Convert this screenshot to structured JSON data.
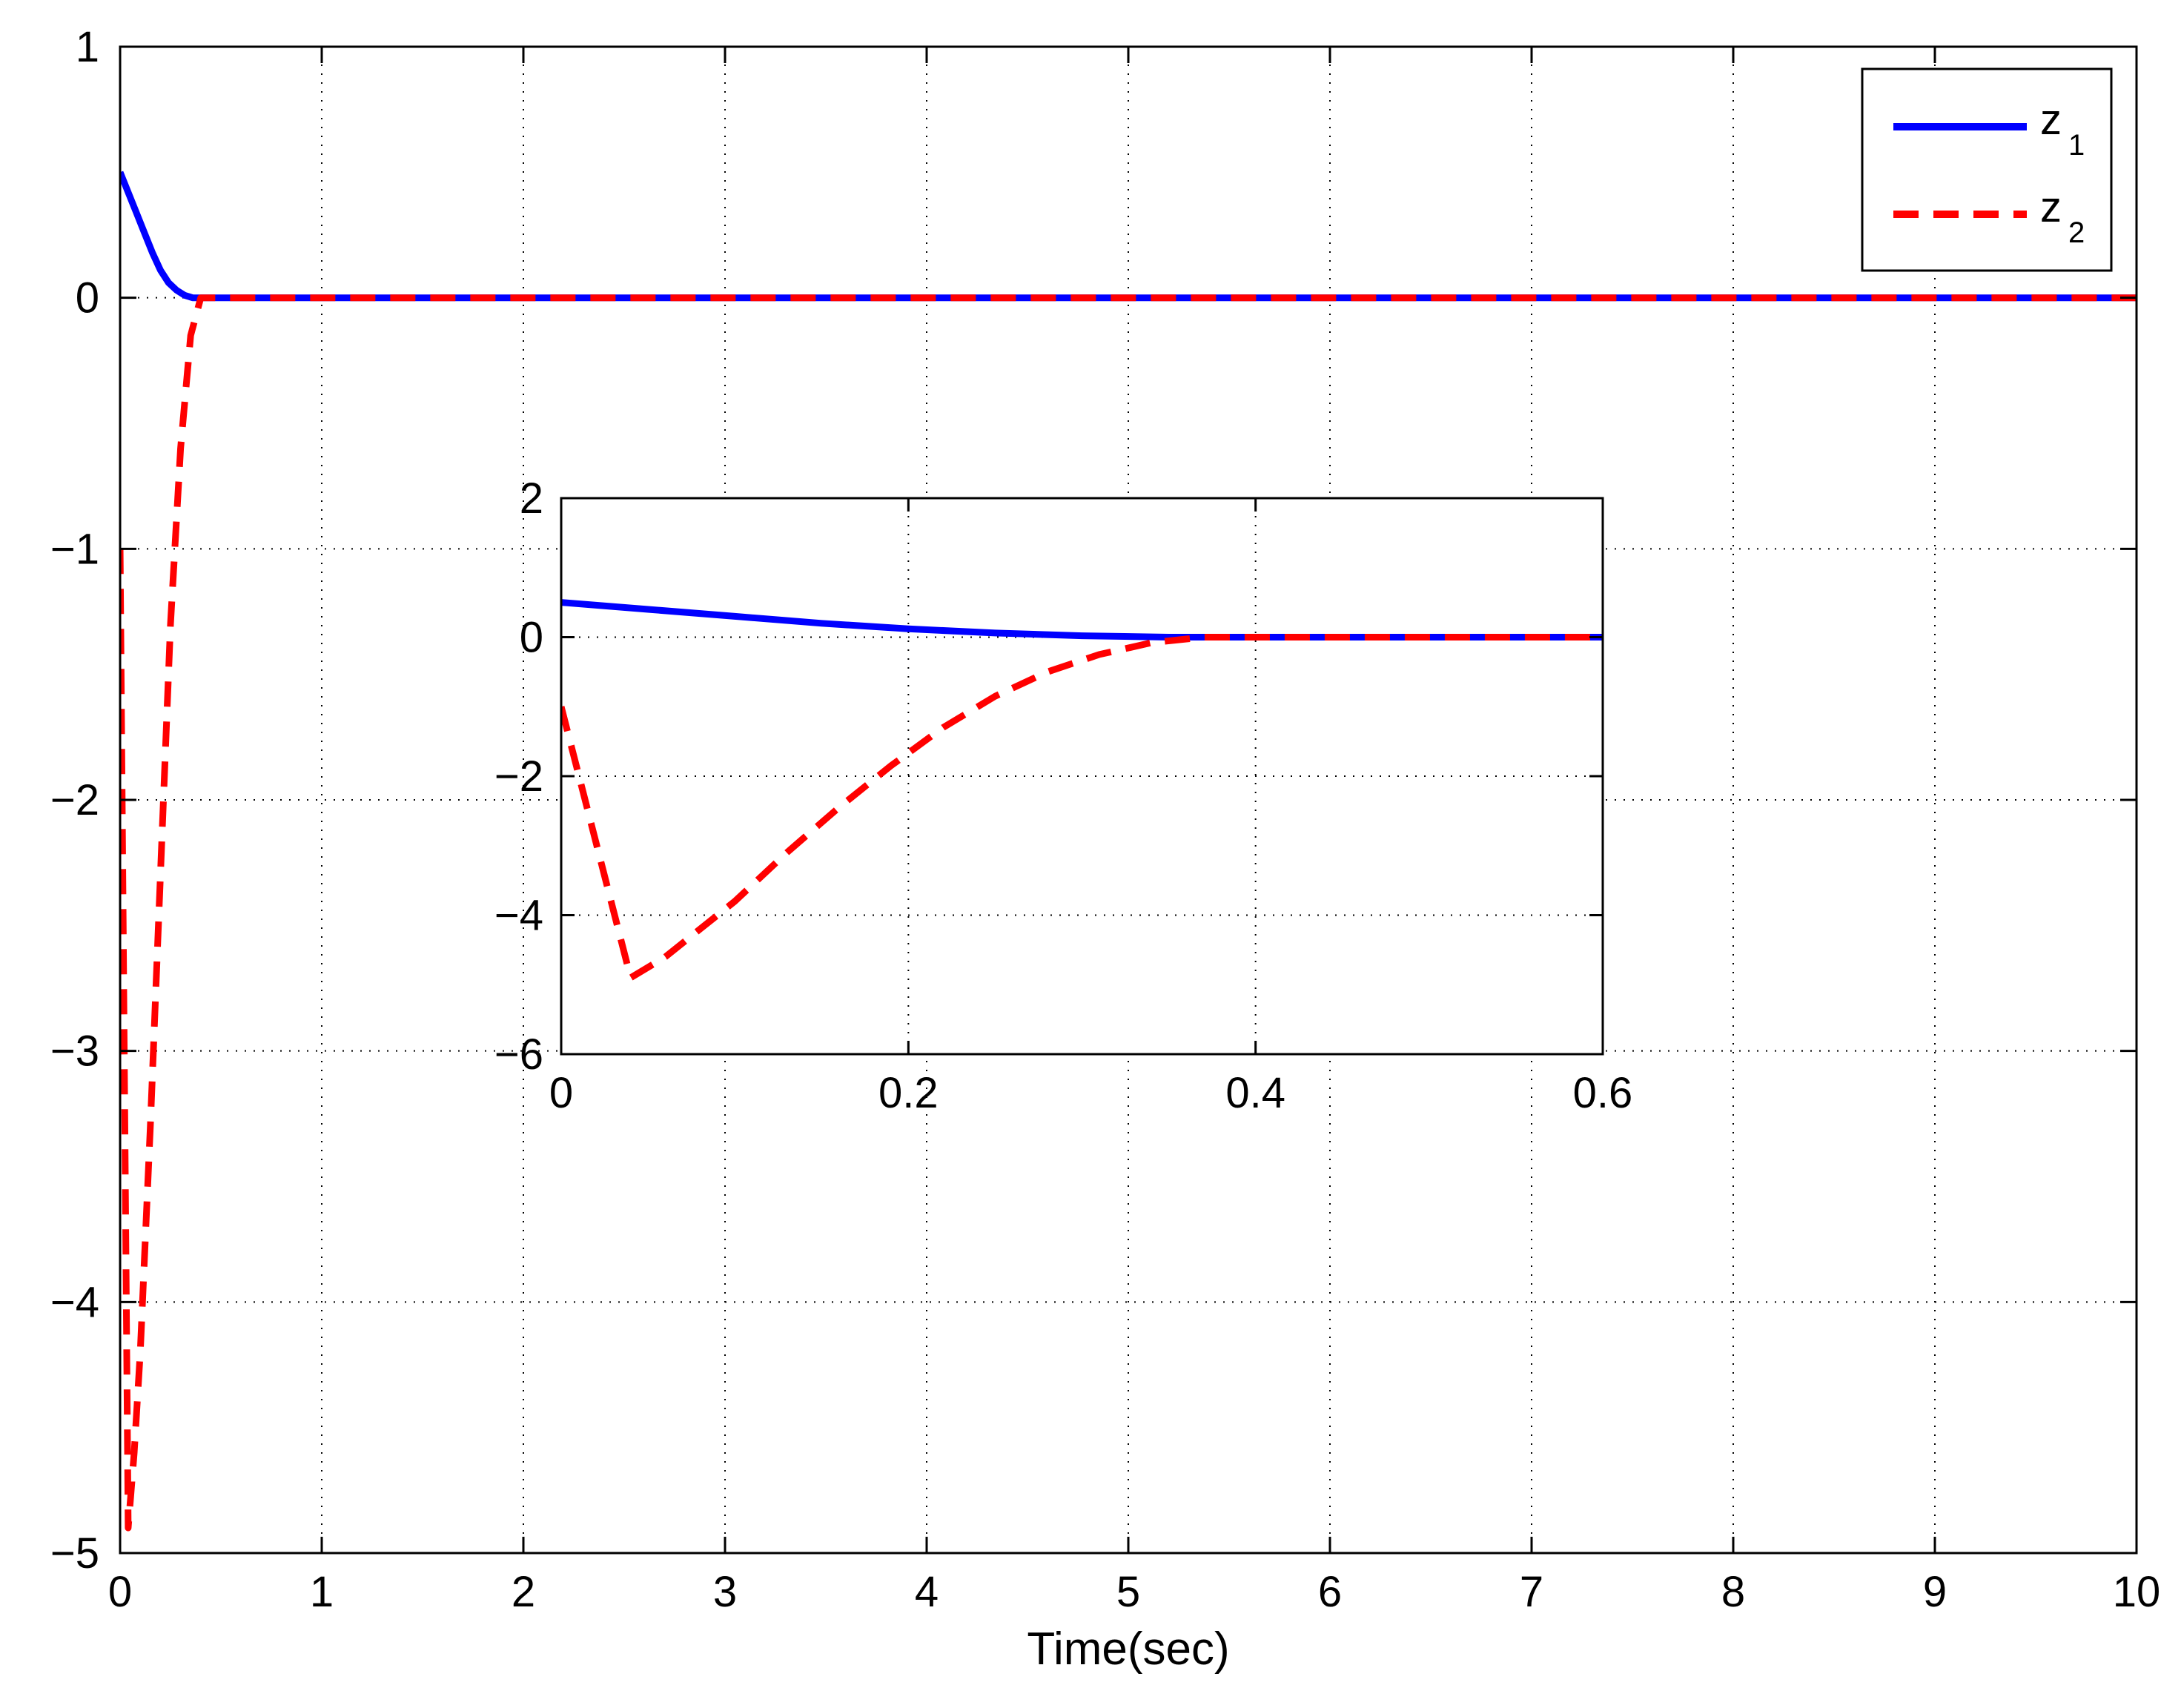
{
  "chart_data": [
    {
      "id": "main",
      "type": "line",
      "xlabel": "Time(sec)",
      "ylabel": "",
      "xlim": [
        0,
        10
      ],
      "ylim": [
        -5,
        1
      ],
      "xticks": [
        0,
        1,
        2,
        3,
        4,
        5,
        6,
        7,
        8,
        9,
        10
      ],
      "yticks": [
        -5,
        -4,
        -3,
        -2,
        -1,
        0,
        1
      ],
      "xtick_labels": [
        "0",
        "1",
        "2",
        "3",
        "4",
        "5",
        "6",
        "7",
        "8",
        "9",
        "10"
      ],
      "ytick_labels": [
        "−5",
        "−4",
        "−3",
        "−2",
        "−1",
        "0",
        "1"
      ],
      "grid": true,
      "legend_position": "top-right",
      "series": [
        {
          "name": "z",
          "subscript": "1",
          "color": "#0000ff",
          "style": "solid",
          "x": [
            0,
            0.04,
            0.08,
            0.12,
            0.16,
            0.2,
            0.24,
            0.28,
            0.32,
            0.36,
            0.4,
            1,
            2,
            3,
            4,
            5,
            6,
            7,
            8,
            9,
            10
          ],
          "y": [
            0.5,
            0.42,
            0.34,
            0.26,
            0.18,
            0.11,
            0.06,
            0.03,
            0.01,
            0.0,
            0,
            0,
            0,
            0,
            0,
            0,
            0,
            0,
            0,
            0,
            0
          ]
        },
        {
          "name": "z",
          "subscript": "2",
          "color": "#ff0000",
          "style": "dashed",
          "x": [
            0,
            0.04,
            0.07,
            0.1,
            0.15,
            0.2,
            0.25,
            0.3,
            0.35,
            0.4,
            1,
            2,
            3,
            4,
            5,
            6,
            7,
            8,
            9,
            10
          ],
          "y": [
            -1,
            -4.9,
            -4.6,
            -4.2,
            -3.3,
            -2.3,
            -1.3,
            -0.6,
            -0.15,
            0,
            0,
            0,
            0,
            0,
            0,
            0,
            0,
            0,
            0,
            0
          ]
        }
      ]
    },
    {
      "id": "inset",
      "type": "line",
      "xlabel": "",
      "ylabel": "",
      "xlim": [
        0,
        0.6
      ],
      "ylim": [
        -6,
        2
      ],
      "xticks": [
        0,
        0.2,
        0.4,
        0.6
      ],
      "yticks": [
        -6,
        -4,
        -2,
        0,
        2
      ],
      "xtick_labels": [
        "0",
        "0.2",
        "0.4",
        "0.6"
      ],
      "ytick_labels": [
        "−6",
        "−4",
        "−2",
        "0",
        "2"
      ],
      "grid": true,
      "series": [
        {
          "name": "z",
          "subscript": "1",
          "color": "#0000ff",
          "style": "solid",
          "x": [
            0,
            0.05,
            0.1,
            0.15,
            0.2,
            0.25,
            0.3,
            0.35,
            0.4,
            0.5,
            0.6
          ],
          "y": [
            0.5,
            0.4,
            0.3,
            0.2,
            0.12,
            0.06,
            0.02,
            0.0,
            0,
            0,
            0
          ]
        },
        {
          "name": "z",
          "subscript": "2",
          "color": "#ff0000",
          "style": "dashed",
          "x": [
            0,
            0.04,
            0.06,
            0.08,
            0.1,
            0.13,
            0.16,
            0.19,
            0.22,
            0.25,
            0.28,
            0.31,
            0.34,
            0.37,
            0.4,
            0.5,
            0.6
          ],
          "y": [
            -1,
            -4.9,
            -4.6,
            -4.2,
            -3.8,
            -3.1,
            -2.45,
            -1.85,
            -1.3,
            -0.85,
            -0.5,
            -0.25,
            -0.08,
            0.0,
            0,
            0,
            0
          ]
        }
      ]
    }
  ]
}
